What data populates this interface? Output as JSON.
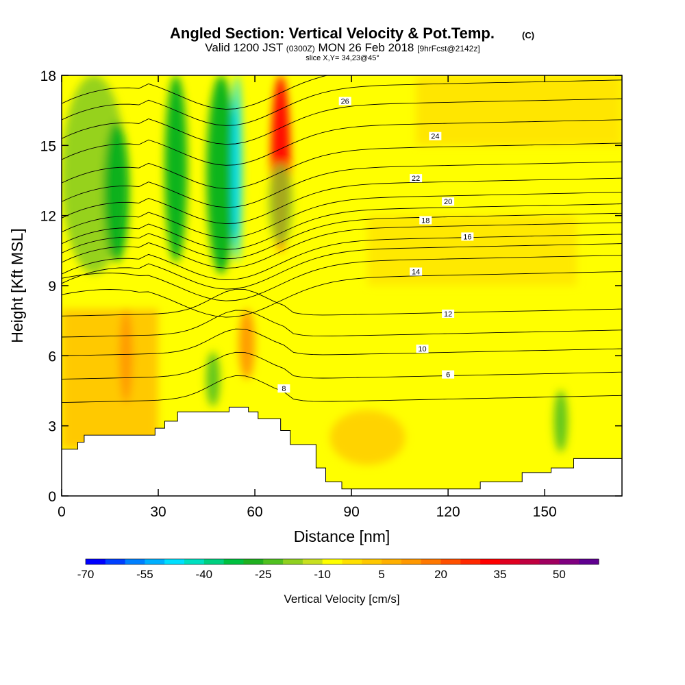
{
  "header": {
    "title": "Angled Section: Vertical Velocity & Pot.Temp.",
    "title_unit": "(C)",
    "valid_prefix": "Valid 1200 JST",
    "valid_z": "(0300Z)",
    "valid_date": "MON 26 Feb 2018",
    "forecast": "[9hrFcst@2142z]",
    "slice": "slice X,Y= 34,23@45°"
  },
  "chart_data": {
    "type": "heatmap",
    "xlabel": "Distance [nm]",
    "ylabel": "Height [Kft MSL]",
    "xlim": [
      0,
      174
    ],
    "ylim": [
      0,
      18
    ],
    "x_ticks": [
      0,
      30,
      60,
      90,
      120,
      150
    ],
    "y_ticks": [
      0,
      3,
      6,
      9,
      12,
      15,
      18
    ],
    "colorbar": {
      "title": "Vertical Velocity [cm/s]",
      "labels": [
        "-70",
        "-55",
        "-40",
        "-25",
        "-10",
        "5",
        "20",
        "35",
        "50"
      ],
      "colors": [
        "#0000ff",
        "#0040ff",
        "#0080ff",
        "#00b0ff",
        "#00e0ff",
        "#00e0c0",
        "#00d080",
        "#00c040",
        "#20b020",
        "#50c020",
        "#90d020",
        "#c8e020",
        "#ffff00",
        "#ffe000",
        "#ffc800",
        "#ffb000",
        "#ff9800",
        "#ff7800",
        "#ff5000",
        "#ff2800",
        "#ff0000",
        "#e00020",
        "#c00040",
        "#a00060",
        "#800080",
        "#600090"
      ]
    },
    "terrain": [
      [
        0,
        2.0
      ],
      [
        5,
        2.3
      ],
      [
        7,
        2.6
      ],
      [
        29,
        2.9
      ],
      [
        32,
        3.2
      ],
      [
        36,
        3.6
      ],
      [
        52,
        3.8
      ],
      [
        58,
        3.6
      ],
      [
        61,
        3.3
      ],
      [
        68,
        2.8
      ],
      [
        71,
        2.2
      ],
      [
        79,
        1.2
      ],
      [
        82,
        0.6
      ],
      [
        87,
        0.3
      ],
      [
        130,
        0.6
      ],
      [
        143,
        1.0
      ],
      [
        152,
        1.2
      ],
      [
        159,
        1.6
      ],
      [
        174,
        1.6
      ]
    ],
    "velocity_cells": [
      {
        "x": 0,
        "y0": 9.5,
        "y1": 18,
        "w": 20,
        "value": "-10"
      },
      {
        "x": 13,
        "y0": 10,
        "y1": 16,
        "w": 8,
        "value": "-25"
      },
      {
        "x": 32,
        "y0": 10,
        "y1": 18,
        "w": 7,
        "value": "-25"
      },
      {
        "x": 45,
        "y0": 9.5,
        "y1": 18,
        "w": 9,
        "value": "-25"
      },
      {
        "x": 53,
        "y0": 10,
        "y1": 18,
        "w": 3,
        "value": "-40"
      },
      {
        "x": 65,
        "y0": 10.5,
        "y1": 18,
        "w": 6,
        "value": "35"
      },
      {
        "x": 18,
        "y0": 4,
        "y1": 8,
        "w": 4,
        "value": "20"
      },
      {
        "x": 55,
        "y0": 5,
        "y1": 8,
        "w": 5,
        "value": "20"
      }
    ],
    "contours": [
      {
        "level": "6",
        "label_x": 120,
        "label_y": 5.2
      },
      {
        "level": "8",
        "label_x": 69,
        "label_y": 4.6
      },
      {
        "level": "10",
        "label_x": 112,
        "label_y": 6.3
      },
      {
        "level": "12",
        "label_x": 120,
        "label_y": 7.8
      },
      {
        "level": "14",
        "label_x": 110,
        "label_y": 9.6
      },
      {
        "level": "16",
        "label_x": 126,
        "label_y": 11.1
      },
      {
        "level": "18",
        "label_x": 113,
        "label_y": 11.8
      },
      {
        "level": "20",
        "label_x": 120,
        "label_y": 12.6
      },
      {
        "level": "22",
        "label_x": 110,
        "label_y": 13.6
      },
      {
        "level": "24",
        "label_x": 116,
        "label_y": 15.4
      },
      {
        "level": "26",
        "label_x": 88,
        "label_y": 16.9
      }
    ]
  }
}
